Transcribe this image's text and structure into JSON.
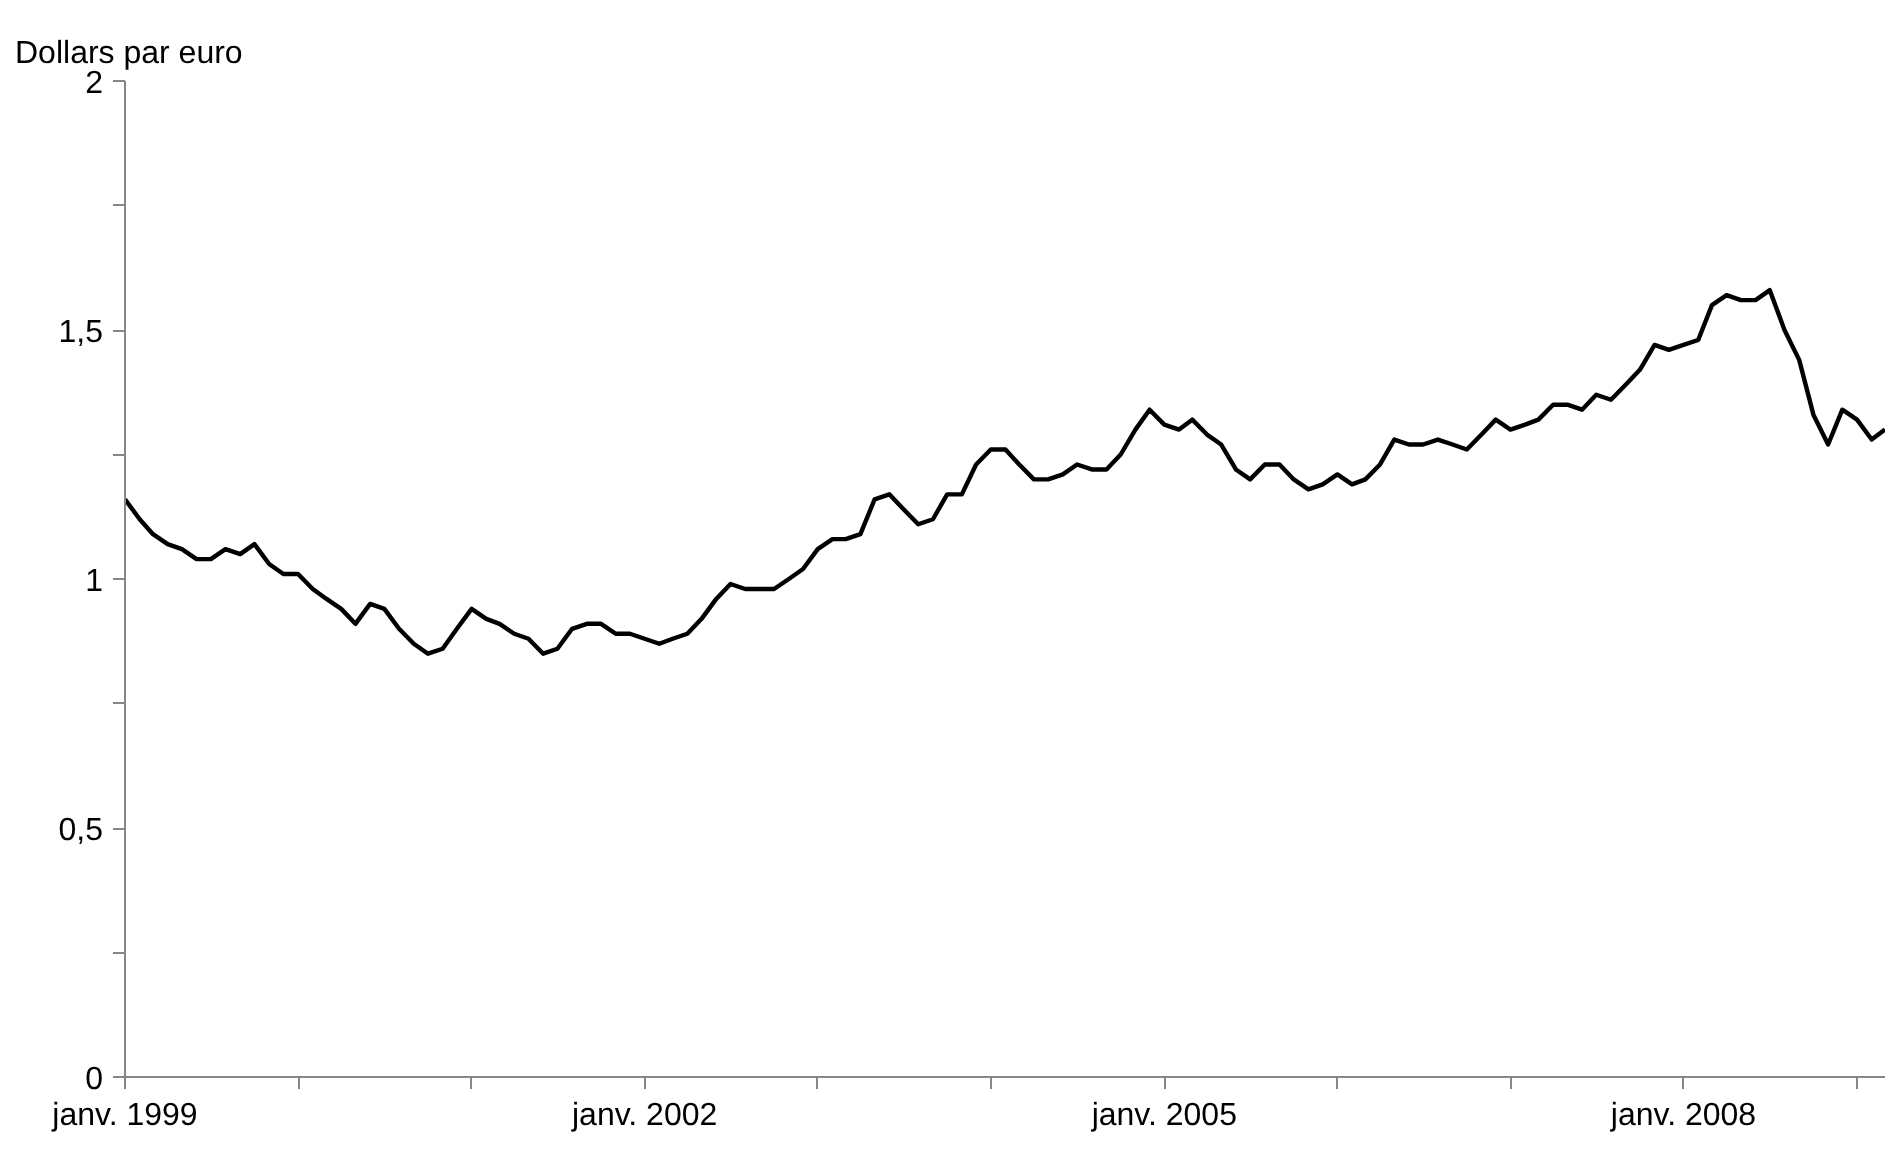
{
  "chart_data": {
    "type": "line",
    "ylabel": "Dollars par euro",
    "x": [
      "1999-01",
      "1999-02",
      "1999-03",
      "1999-04",
      "1999-05",
      "1999-06",
      "1999-07",
      "1999-08",
      "1999-09",
      "1999-10",
      "1999-11",
      "1999-12",
      "2000-01",
      "2000-02",
      "2000-03",
      "2000-04",
      "2000-05",
      "2000-06",
      "2000-07",
      "2000-08",
      "2000-09",
      "2000-10",
      "2000-11",
      "2000-12",
      "2001-01",
      "2001-02",
      "2001-03",
      "2001-04",
      "2001-05",
      "2001-06",
      "2001-07",
      "2001-08",
      "2001-09",
      "2001-10",
      "2001-11",
      "2001-12",
      "2002-01",
      "2002-02",
      "2002-03",
      "2002-04",
      "2002-05",
      "2002-06",
      "2002-07",
      "2002-08",
      "2002-09",
      "2002-10",
      "2002-11",
      "2002-12",
      "2003-01",
      "2003-02",
      "2003-03",
      "2003-04",
      "2003-05",
      "2003-06",
      "2003-07",
      "2003-08",
      "2003-09",
      "2003-10",
      "2003-11",
      "2003-12",
      "2004-01",
      "2004-02",
      "2004-03",
      "2004-04",
      "2004-05",
      "2004-06",
      "2004-07",
      "2004-08",
      "2004-09",
      "2004-10",
      "2004-11",
      "2004-12",
      "2005-01",
      "2005-02",
      "2005-03",
      "2005-04",
      "2005-05",
      "2005-06",
      "2005-07",
      "2005-08",
      "2005-09",
      "2005-10",
      "2005-11",
      "2005-12",
      "2006-01",
      "2006-02",
      "2006-03",
      "2006-04",
      "2006-05",
      "2006-06",
      "2006-07",
      "2006-08",
      "2006-09",
      "2006-10",
      "2006-11",
      "2006-12",
      "2007-01",
      "2007-02",
      "2007-03",
      "2007-04",
      "2007-05",
      "2007-06",
      "2007-07",
      "2007-08",
      "2007-09",
      "2007-10",
      "2007-11",
      "2007-12",
      "2008-01",
      "2008-02",
      "2008-03",
      "2008-04",
      "2008-05",
      "2008-06",
      "2008-07",
      "2008-08",
      "2008-09",
      "2008-10",
      "2008-11",
      "2008-12",
      "2009-01",
      "2009-02",
      "2009-03"
    ],
    "series": [
      {
        "color": "#000000",
        "values": [
          1.16,
          1.12,
          1.09,
          1.07,
          1.06,
          1.04,
          1.04,
          1.06,
          1.05,
          1.07,
          1.03,
          1.01,
          1.01,
          0.98,
          0.96,
          0.94,
          0.91,
          0.95,
          0.94,
          0.9,
          0.87,
          0.85,
          0.86,
          0.9,
          0.94,
          0.92,
          0.91,
          0.89,
          0.88,
          0.85,
          0.86,
          0.9,
          0.91,
          0.91,
          0.89,
          0.89,
          0.88,
          0.87,
          0.88,
          0.89,
          0.92,
          0.96,
          0.99,
          0.98,
          0.98,
          0.98,
          1.0,
          1.02,
          1.06,
          1.08,
          1.08,
          1.09,
          1.16,
          1.17,
          1.14,
          1.11,
          1.12,
          1.17,
          1.17,
          1.23,
          1.26,
          1.26,
          1.23,
          1.2,
          1.2,
          1.21,
          1.23,
          1.22,
          1.22,
          1.25,
          1.3,
          1.34,
          1.31,
          1.3,
          1.32,
          1.29,
          1.27,
          1.22,
          1.2,
          1.23,
          1.23,
          1.2,
          1.18,
          1.19,
          1.21,
          1.19,
          1.2,
          1.23,
          1.28,
          1.27,
          1.27,
          1.28,
          1.27,
          1.26,
          1.29,
          1.32,
          1.3,
          1.31,
          1.32,
          1.35,
          1.35,
          1.34,
          1.37,
          1.36,
          1.39,
          1.42,
          1.47,
          1.46,
          1.47,
          1.48,
          1.55,
          1.57,
          1.56,
          1.56,
          1.58,
          1.5,
          1.44,
          1.33,
          1.27,
          1.34,
          1.32,
          1.28,
          1.3
        ]
      }
    ],
    "xlim": [
      "1999-01",
      "2009-03"
    ],
    "xticks": [
      {
        "value": "1999-01",
        "label": "janv. 1999"
      },
      {
        "value": "2000-01",
        "label": null
      },
      {
        "value": "2001-01",
        "label": null
      },
      {
        "value": "2002-01",
        "label": "janv. 2002"
      },
      {
        "value": "2003-01",
        "label": null
      },
      {
        "value": "2004-01",
        "label": null
      },
      {
        "value": "2005-01",
        "label": "janv. 2005"
      },
      {
        "value": "2006-01",
        "label": null
      },
      {
        "value": "2007-01",
        "label": null
      },
      {
        "value": "2008-01",
        "label": "janv. 2008"
      },
      {
        "value": "2009-01",
        "label": null
      }
    ],
    "ylim": [
      0,
      2
    ],
    "yticks": [
      0,
      {
        "value": 0.25,
        "label": null
      },
      {
        "value": 0.5,
        "label": "0,5"
      },
      {
        "value": 0.75,
        "label": null
      },
      1,
      {
        "value": 1.25,
        "label": null
      },
      {
        "value": 1.5,
        "label": "1,5"
      },
      {
        "value": 1.75,
        "label": null
      },
      2
    ],
    "grid": false,
    "marker": "none",
    "line_style": "solid"
  }
}
